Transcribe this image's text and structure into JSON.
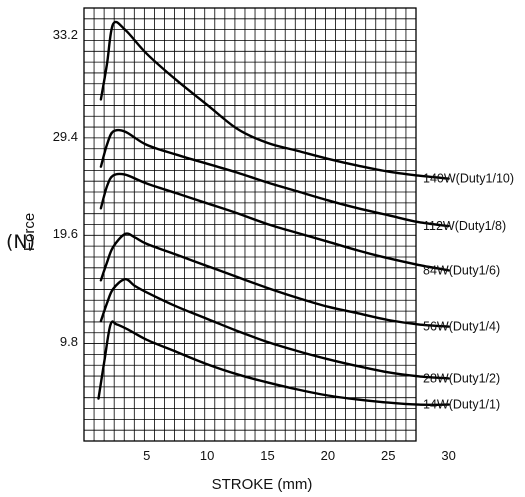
{
  "chart_data": {
    "type": "line",
    "xlabel": "STROKE (mm)",
    "ylabel": "Force",
    "yunit": "(N)",
    "x_ticks": [
      "5",
      "10",
      "15",
      "20",
      "25",
      "30"
    ],
    "y_ticks": [
      "9.8",
      "19.6",
      "29.4",
      "33.2"
    ],
    "grid": true,
    "series": [
      {
        "name": "140W(Duty1/10)",
        "x": [
          1.2,
          1.7,
          2.2,
          3.2,
          5,
          7.5,
          10,
          12.5,
          15,
          17.5,
          20,
          22.5,
          25,
          27.5,
          30
        ],
        "y": [
          30.8,
          32.1,
          33.6,
          33.4,
          32.5,
          31.5,
          30.6,
          29.7,
          28.8,
          28.0,
          27.2,
          26.5,
          25.9,
          25.5,
          25.2
        ]
      },
      {
        "name": "112W(Duty1/8)",
        "x": [
          1.2,
          1.7,
          2.2,
          3.2,
          5,
          7.5,
          10,
          12.5,
          15,
          17.5,
          20,
          22.5,
          25,
          27.5,
          30
        ],
        "y": [
          26.4,
          28.6,
          29.6,
          29.6,
          28.6,
          27.6,
          26.7,
          25.8,
          24.8,
          23.9,
          23.0,
          22.2,
          21.5,
          20.8,
          20.4
        ]
      },
      {
        "name": "84W(Duty1/6)",
        "x": [
          1.2,
          1.7,
          2.2,
          3.2,
          5,
          7.5,
          10,
          12.5,
          15,
          17.5,
          20,
          22.5,
          25,
          27.5,
          30
        ],
        "y": [
          22.2,
          24.4,
          25.5,
          25.6,
          24.7,
          23.7,
          22.7,
          21.7,
          20.6,
          19.7,
          18.9,
          18.1,
          17.4,
          16.8,
          16.3
        ]
      },
      {
        "name": "56W(Duty1/4)",
        "x": [
          1.2,
          1.7,
          2.2,
          3.2,
          4,
          5,
          7.5,
          10,
          12.5,
          15,
          17.5,
          20,
          22.5,
          25,
          27.5,
          30
        ],
        "y": [
          15.4,
          17.0,
          18.4,
          19.6,
          19.3,
          18.7,
          17.7,
          16.7,
          15.7,
          14.7,
          13.8,
          13.0,
          12.4,
          11.8,
          11.4,
          11.2
        ]
      },
      {
        "name": "28W(Duty1/2)",
        "x": [
          1.2,
          1.7,
          2.2,
          3.2,
          4,
          5,
          7.5,
          10,
          12.5,
          15,
          17.5,
          20,
          22.5,
          25,
          27.5,
          30
        ],
        "y": [
          11.7,
          13.3,
          14.6,
          15.5,
          14.9,
          14.3,
          13.0,
          11.9,
          10.8,
          9.8,
          8.9,
          8.1,
          7.4,
          6.8,
          6.4,
          6.2
        ]
      },
      {
        "name": "14W(Duty1/1)",
        "x": [
          1.0,
          1.5,
          2.0,
          2.5,
          3.5,
          5,
          7.5,
          10,
          12.5,
          15,
          17.5,
          20,
          22.5,
          25,
          27.5,
          30
        ],
        "y": [
          4.2,
          8.0,
          11.4,
          11.4,
          10.9,
          10.0,
          8.8,
          7.6,
          6.6,
          5.8,
          5.1,
          4.5,
          4.1,
          3.8,
          3.6,
          3.6
        ]
      }
    ]
  }
}
